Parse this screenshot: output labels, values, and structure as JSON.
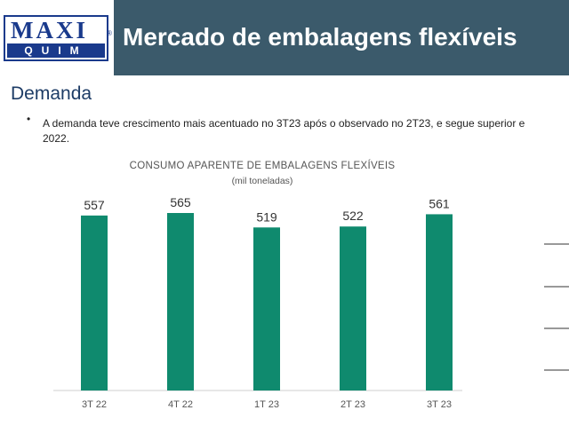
{
  "header": {
    "logo": {
      "top": "MAXI",
      "bottom": "QUIM",
      "mark": "®"
    },
    "title": "Mercado de embalagens flexíveis"
  },
  "section": {
    "title": "Demanda"
  },
  "bullet": {
    "marker": "•",
    "line1": "A demanda teve crescimento mais acentuado no 3T23 após o observado no 2T23, e segue superior e",
    "line2": "2022."
  },
  "colors": {
    "header_bg": "#3b5a6b",
    "bar": "#0f8a6e",
    "logo": "#1a3a8c"
  },
  "chart_data": {
    "type": "bar",
    "title": "CONSUMO APARENTE DE EMBALAGENS FLEXÍVEIS",
    "subtitle": "(mil toneladas)",
    "categories": [
      "3T 22",
      "4T 22",
      "1T 23",
      "2T 23",
      "3T 23"
    ],
    "values": [
      557,
      565,
      519,
      522,
      561
    ],
    "ylim": [
      0,
      565
    ],
    "grid": false,
    "legend": "none"
  }
}
